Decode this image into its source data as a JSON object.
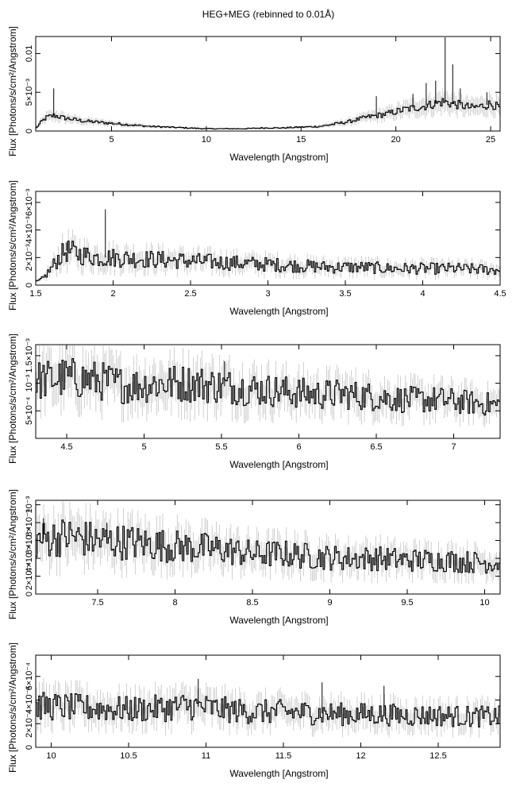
{
  "title": "HEG+MEG (rebinned to 0.01Å)",
  "chart_data": [
    {
      "type": "line",
      "xlabel": "Wavelength [Angstrom]",
      "ylabel": "Flux [Photons/s/cm²/Angstrom]",
      "xlim": [
        1.0,
        25.5
      ],
      "ylim": [
        0,
        0.0122
      ],
      "xticks": [
        5,
        10,
        15,
        20,
        25
      ],
      "xtick_labels": [
        "5",
        "10",
        "15",
        "20",
        "25"
      ],
      "yticks": [
        0,
        0.005,
        0.01
      ],
      "ytick_labels": [
        "0",
        "5×10⁻³",
        "0.01"
      ],
      "series": [
        {
          "x": [
            1.0,
            1.3,
            1.6,
            2.0,
            2.5,
            3.0,
            3.5,
            4.0,
            5.0,
            6.0,
            7.0,
            8.0,
            9.0,
            10.0,
            11.0,
            12.0,
            13.0,
            14.0,
            15.0,
            16.0,
            16.5,
            17.0,
            17.5,
            18.0,
            18.5,
            19.0,
            19.5,
            20.0,
            20.5,
            21.0,
            21.5,
            22.0,
            22.5,
            23.0,
            23.5,
            24.0,
            24.5,
            25.0,
            25.5
          ],
          "y": [
            0.0003,
            0.0012,
            0.0018,
            0.002,
            0.0017,
            0.0015,
            0.0013,
            0.0012,
            0.001,
            0.0008,
            0.0006,
            0.0005,
            0.0004,
            0.0003,
            0.0003,
            0.0003,
            0.0004,
            0.0004,
            0.0005,
            0.0006,
            0.0008,
            0.001,
            0.0012,
            0.0015,
            0.0018,
            0.002,
            0.0022,
            0.0025,
            0.0028,
            0.003,
            0.0032,
            0.0035,
            0.0038,
            0.0035,
            0.0033,
            0.003,
            0.0032,
            0.0035,
            0.003
          ]
        }
      ],
      "peaks": [
        {
          "x": 1.95,
          "y": 0.0055
        },
        {
          "x": 18.97,
          "y": 0.0045
        },
        {
          "x": 20.9,
          "y": 0.0048
        },
        {
          "x": 21.6,
          "y": 0.0062
        },
        {
          "x": 22.1,
          "y": 0.0065
        },
        {
          "x": 22.6,
          "y": 0.0121
        },
        {
          "x": 23.0,
          "y": 0.0086
        },
        {
          "x": 23.4,
          "y": 0.0055
        },
        {
          "x": 24.8,
          "y": 0.005
        }
      ]
    },
    {
      "type": "line",
      "xlabel": "Wavelength [Angstrom]",
      "ylabel": "Flux [Photons/s/cm²/Angstrom]",
      "xlim": [
        1.5,
        4.5
      ],
      "ylim": [
        0,
        0.0068
      ],
      "xticks": [
        1.5,
        2,
        2.5,
        3,
        3.5,
        4,
        4.5
      ],
      "xtick_labels": [
        "1.5",
        "2",
        "2.5",
        "3",
        "3.5",
        "4",
        "4.5"
      ],
      "yticks": [
        0,
        0.002,
        0.004,
        0.006
      ],
      "ytick_labels": [
        "0",
        "2×10⁻³",
        "4×10⁻³",
        "6×10⁻³"
      ],
      "series": [
        {
          "x": [
            1.5,
            1.55,
            1.6,
            1.65,
            1.7,
            1.8,
            1.9,
            2.0,
            2.2,
            2.4,
            2.6,
            2.8,
            3.0,
            3.2,
            3.4,
            3.6,
            3.8,
            4.0,
            4.2,
            4.5
          ],
          "y": [
            0.0002,
            0.0005,
            0.0012,
            0.002,
            0.0025,
            0.0022,
            0.002,
            0.002,
            0.0019,
            0.0018,
            0.0017,
            0.0016,
            0.0015,
            0.0014,
            0.0013,
            0.0013,
            0.0012,
            0.0012,
            0.0012,
            0.0011
          ]
        }
      ],
      "peaks": [
        {
          "x": 1.95,
          "y": 0.0055
        },
        {
          "x": 1.7,
          "y": 0.0031
        }
      ]
    },
    {
      "type": "line",
      "xlabel": "Wavelength [Angstrom]",
      "ylabel": "Flux [Photons/s/cm²/Angstrom]",
      "xlim": [
        4.3,
        7.3
      ],
      "ylim": [
        0,
        0.0017
      ],
      "xticks": [
        4.5,
        5,
        5.5,
        6,
        6.5,
        7
      ],
      "xtick_labels": [
        "4.5",
        "5",
        "5.5",
        "6",
        "6.5",
        "7"
      ],
      "yticks": [
        0.0005,
        0.001,
        0.0015
      ],
      "ytick_labels": [
        "5×10⁻⁴",
        "10⁻³",
        "1.5×10⁻³"
      ],
      "series": [
        {
          "x": [
            4.3,
            4.5,
            4.7,
            4.9,
            5.1,
            5.3,
            5.5,
            5.7,
            5.9,
            6.1,
            6.3,
            6.5,
            6.7,
            6.9,
            7.1,
            7.3
          ],
          "y": [
            0.00105,
            0.0011,
            0.00105,
            0.00095,
            0.001,
            0.001,
            0.00095,
            0.0009,
            0.00085,
            0.0008,
            0.0008,
            0.00075,
            0.0007,
            0.0007,
            0.00065,
            0.0006
          ]
        }
      ],
      "peaks": [
        {
          "x": 5.52,
          "y": 0.0014
        }
      ]
    },
    {
      "type": "line",
      "xlabel": "Wavelength [Angstrom]",
      "ylabel": "Flux [Photons/s/cm²/Angstrom]",
      "xlim": [
        7.1,
        10.1
      ],
      "ylim": [
        0,
        0.00105
      ],
      "xticks": [
        7.5,
        8,
        8.5,
        9,
        9.5,
        10
      ],
      "xtick_labels": [
        "7.5",
        "8",
        "8.5",
        "9",
        "9.5",
        "10"
      ],
      "yticks": [
        0,
        0.0002,
        0.0004,
        0.0006,
        0.0008,
        0.001
      ],
      "ytick_labels": [
        "0",
        "2×10⁻⁴",
        "4×10⁻⁴",
        "6×10⁻⁴",
        "8×10⁻⁴",
        "10⁻³"
      ],
      "series": [
        {
          "x": [
            7.1,
            7.3,
            7.5,
            7.7,
            7.9,
            8.1,
            8.3,
            8.5,
            8.7,
            8.9,
            9.1,
            9.3,
            9.5,
            9.7,
            9.9,
            10.1
          ],
          "y": [
            0.0006,
            0.00065,
            0.0006,
            0.00058,
            0.00055,
            0.00052,
            0.0005,
            0.00045,
            0.00045,
            0.00042,
            0.0004,
            0.0004,
            0.00038,
            0.00038,
            0.00036,
            0.00035
          ]
        }
      ],
      "peaks": [
        {
          "x": 7.15,
          "y": 0.00085
        },
        {
          "x": 7.56,
          "y": 0.0008
        }
      ]
    },
    {
      "type": "line",
      "xlabel": "Wavelength [Angstrom]",
      "ylabel": "Flux [Photons/s/cm²/Angstrom]",
      "xlim": [
        9.9,
        12.9
      ],
      "ylim": [
        0,
        0.00078
      ],
      "xticks": [
        10,
        10.5,
        11,
        11.5,
        12,
        12.5
      ],
      "xtick_labels": [
        "10",
        "10.5",
        "11",
        "11.5",
        "12",
        "12.5"
      ],
      "yticks": [
        0,
        0.0002,
        0.0004,
        0.0006
      ],
      "ytick_labels": [
        "0",
        "2×10⁻⁴",
        "4×10⁻⁴",
        "6×10⁻⁴"
      ],
      "series": [
        {
          "x": [
            9.9,
            10.1,
            10.3,
            10.5,
            10.7,
            10.9,
            11.1,
            11.3,
            11.5,
            11.7,
            11.9,
            12.1,
            12.3,
            12.5,
            12.7,
            12.9
          ],
          "y": [
            0.00035,
            0.00034,
            0.00033,
            0.00032,
            0.00033,
            0.00035,
            0.00032,
            0.0003,
            0.0003,
            0.00029,
            0.00028,
            0.00028,
            0.00027,
            0.00027,
            0.00026,
            0.00026
          ]
        }
      ],
      "peaks": [
        {
          "x": 10.95,
          "y": 0.00058
        },
        {
          "x": 11.75,
          "y": 0.00055
        },
        {
          "x": 12.15,
          "y": 0.00052
        }
      ]
    }
  ]
}
